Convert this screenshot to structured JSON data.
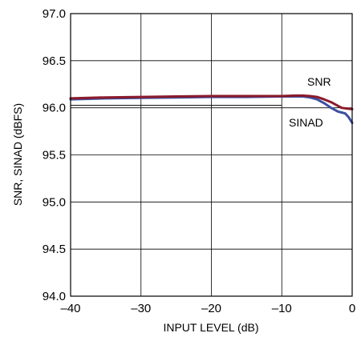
{
  "chart_data": {
    "type": "line",
    "xlabel": "INPUT LEVEL (dB)",
    "ylabel": "SNR, SINAD (dBFS)",
    "xlim": [
      -40,
      0
    ],
    "ylim": [
      94.0,
      97.0
    ],
    "x_ticks": [
      -40,
      -30,
      -20,
      -10,
      0
    ],
    "x_tick_labels": [
      "–40",
      "–30",
      "–20",
      "–10",
      "0"
    ],
    "y_ticks": [
      94.0,
      94.5,
      95.0,
      95.5,
      96.0,
      96.5,
      97.0
    ],
    "y_tick_labels": [
      "94.0",
      "94.5",
      "95.0",
      "95.5",
      "96.0",
      "96.5",
      "97.0"
    ],
    "grid": true,
    "series": [
      {
        "name": "SNR",
        "color": "#8b1a2b",
        "x": [
          -40,
          -35,
          -30,
          -25,
          -20,
          -15,
          -10,
          -8,
          -7,
          -6,
          -5,
          -4,
          -3,
          -2,
          -1.5,
          -1,
          0
        ],
        "y": [
          96.1,
          96.11,
          96.115,
          96.12,
          96.125,
          96.125,
          96.125,
          96.13,
          96.13,
          96.125,
          96.115,
          96.09,
          96.06,
          96.02,
          96.0,
          95.995,
          95.985
        ]
      },
      {
        "name": "SINAD",
        "color": "#3c4fa0",
        "x": [
          -40,
          -35,
          -30,
          -25,
          -20,
          -15,
          -10,
          -8,
          -7,
          -6,
          -5,
          -4,
          -3,
          -2,
          -1.5,
          -1,
          -0.5,
          0
        ],
        "y": [
          96.09,
          96.1,
          96.105,
          96.11,
          96.115,
          96.115,
          96.12,
          96.12,
          96.12,
          96.11,
          96.09,
          96.05,
          96.0,
          95.96,
          95.95,
          95.94,
          95.9,
          95.84
        ]
      }
    ]
  }
}
